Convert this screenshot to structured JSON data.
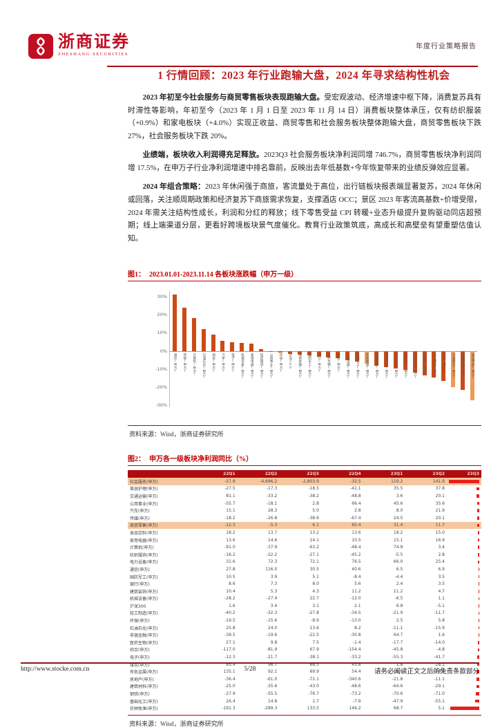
{
  "header": {
    "brand_cn": "浙商证券",
    "brand_en": "ZHESHANG SECURITIES",
    "report_type": "年度行业策略报告"
  },
  "section_title": "1 行情回顾：2023 年行业跑输大盘，2024 年寻求结构性机会",
  "paragraphs": [
    {
      "lead": "2023 年初至今社会服务与商贸零售板块表现跑输大盘。",
      "body": "受宏观波动、经济增速中枢下降，消费复苏具有时滞性等影响，年初至今（2023 年 1 月 1 日至 2023 年 11 月 14 日）消费板块整体承压，仅有纺织服装（+0.9%）和家电板块（+4.0%）实现正收益、商贸零售和社会服务板块整体跑输大盘，商贸零售板块下跌 27%，社会服务板块下跌 20%。"
    },
    {
      "lead": "业绩端，板块收入利润得充足释放。",
      "body": "2023Q3 社会服务板块净利润同增 746.7%，商贸零售板块净利润同增 17.5%，在申万子行业净利润增速中排名靠前，反映出去年低基数+今年恢复带来的业绩反弹效应显著。"
    },
    {
      "lead": "2024 年组合策略：",
      "body": "2023 年休闲强于商旅，客流量处于高位，出行链板块报表端显著复苏，2024 年休闲或回落，关注顺周期政策和经济复苏下商旅需求恢复，支撑酒店 OCC；景区 2023 年客流高基数+价增受限，2024 年需关注结构性成长，利润和分红的释放；线下零售受益 CPI 转暖+业态升级提升复购驱动同店超预期；线上端渠道分层，更看好跨境板块景气度催化。教育行业政策筑底，高成长和高壁垒有望重塑估值认知。"
    }
  ],
  "figure1": {
    "label": "图1：",
    "title": "2023.01.01-2023.11.14 各板块涨跌幅（申万一级）",
    "source": "资料来源：Wind，浙商证券研究所"
  },
  "figure2": {
    "label": "图2：",
    "title": "申万各一级板块净利润同比（%）",
    "source": "资料来源：Wind，浙商证券研究所"
  },
  "chart_data": [
    {
      "type": "bar",
      "title": "2023.01.01-2023.11.14 各板块涨跌幅（申万一级）",
      "ylabel": "涨跌幅",
      "ylim": [
        -30,
        30
      ],
      "yticks": [
        "30%",
        "20%",
        "10%",
        "0%",
        "-10%",
        "-20%",
        "-30%"
      ],
      "grid": false,
      "categories": [
        "通信(申万)",
        "传媒(申万)",
        "计算机(申万)",
        "石油石化(申万)",
        "煤炭(申万)",
        "汽车(申万)",
        "电子(申万)",
        "机械设备(申万)",
        "家用电器(申万)",
        "纺织服饰(申万)",
        "公用事业(申万)",
        "环保(申万)",
        "沪深300",
        "非银金融(申万)",
        "国防军工(申万)",
        "银行(申万)",
        "医药生物(申万)",
        "钢铁(申万)",
        "交通运输(申万)",
        "基础化工(申万)",
        "有色金属(申万)",
        "建筑装饰(申万)",
        "食品饮料(申万)",
        "农林牧渔(申万)",
        "建筑材料(申万)",
        "电力设备(申万)",
        "房地产(申万)",
        "轻工制造(申万)",
        "综合(申万)",
        "社会服务(申万)",
        "美容护理(申万)",
        "商贸零售(申万)"
      ],
      "values": [
        31,
        24,
        18,
        12,
        9,
        5.5,
        5,
        4.5,
        4.0,
        0.9,
        -0.5,
        -1,
        -1.5,
        -2,
        -2.5,
        -3,
        -3.5,
        -4,
        -5,
        -6,
        -7,
        -8,
        -9,
        -9.5,
        -10.5,
        -12,
        -13.5,
        -14.5,
        -16.5,
        -20,
        -21.5,
        -27
      ],
      "highlight_indexes": [
        20,
        29,
        31
      ],
      "bar_color": "#cc4a14",
      "highlight_color": "#f09a58"
    },
    {
      "type": "table",
      "title": "申万各一级板块净利润同比（%）",
      "columns": [
        "",
        "22Q1",
        "22Q2",
        "22Q3",
        "22Q4",
        "23Q1",
        "23Q2",
        "23Q3"
      ],
      "q3_note": "23Q3 列以红色数据条展示",
      "rows": [
        {
          "name": "社会服务(申万)",
          "v": [
            "-57.9",
            "-4,696.2",
            "-2,803.9",
            "-32.5",
            "119.2",
            "141.9"
          ],
          "bar": 100,
          "hl": true
        },
        {
          "name": "美容护理(申万)",
          "v": [
            "-27.5",
            "-17.3",
            "-18.5",
            "-41.1",
            "35.5",
            "37.8"
          ],
          "bar": 8,
          "hl": false
        },
        {
          "name": "交通运输(申万)",
          "v": [
            "81.1",
            "-33.2",
            "-38.2",
            "-48.8",
            "3.6",
            "20.1"
          ],
          "bar": 8,
          "hl": false
        },
        {
          "name": "公用事业(申万)",
          "v": [
            "-55.7",
            "-18.1",
            "2.8",
            "66.4",
            "45.6",
            "35.6"
          ],
          "bar": 7,
          "hl": false
        },
        {
          "name": "汽车(申万)",
          "v": [
            "15.1",
            "28.3",
            "5.0",
            "2.8",
            "8.0",
            "21.9"
          ],
          "bar": 7,
          "hl": false
        },
        {
          "name": "传媒(申万)",
          "v": [
            "-18.2",
            "-26.8",
            "-38.6",
            "-67.4",
            "24.5",
            "20.1"
          ],
          "bar": 6,
          "hl": false
        },
        {
          "name": "商贸零售(申万)",
          "v": [
            "-12.3",
            "-5.3",
            "6.1",
            "65.4",
            "31.4",
            "11.7"
          ],
          "bar": 6,
          "hl": true
        },
        {
          "name": "食品饮料(申万)",
          "v": [
            "18.2",
            "13.7",
            "13.2",
            "13.6",
            "18.2",
            "15.0"
          ],
          "bar": 5,
          "hl": false
        },
        {
          "name": "家用电器(申万)",
          "v": [
            "13.6",
            "14.6",
            "14.1",
            "10.5",
            "15.1",
            "16.9"
          ],
          "bar": 5,
          "hl": false
        },
        {
          "name": "计算机(申万)",
          "v": [
            "-91.0",
            "-37.9",
            "-63.2",
            "-48.4",
            "74.8",
            "3.4"
          ],
          "bar": 4,
          "hl": false
        },
        {
          "name": "纺织服饰(申万)",
          "v": [
            "-16.2",
            "-22.2",
            "-27.1",
            "-45.2",
            "-5.5",
            "2.8"
          ],
          "bar": 4,
          "hl": false
        },
        {
          "name": "电力设备(申万)",
          "v": [
            "31.6",
            "72.3",
            "72.1",
            "76.5",
            "66.0",
            "25.4"
          ],
          "bar": 4,
          "hl": false
        },
        {
          "name": "通信(申万)",
          "v": [
            "27.8",
            "116.0",
            "30.5",
            "40.6",
            "6.5",
            "6.9"
          ],
          "bar": 3,
          "hl": false
        },
        {
          "name": "国防军工(申万)",
          "v": [
            "10.5",
            "3.9",
            "5.1",
            "-8.4",
            "-4.4",
            "3.5"
          ],
          "bar": 3,
          "hl": false
        },
        {
          "name": "银行(申万)",
          "v": [
            "8.6",
            "7.3",
            "8.0",
            "5.6",
            "2.4",
            "3.5"
          ],
          "bar": 3,
          "hl": false
        },
        {
          "name": "建筑装饰(申万)",
          "v": [
            "10.4",
            "5.3",
            "4.3",
            "11.2",
            "11.2",
            "4.7"
          ],
          "bar": 3,
          "hl": false
        },
        {
          "name": "机械设备(申万)",
          "v": [
            "-28.2",
            "-27.4",
            "22.7",
            "-12.0",
            "-6.5",
            "1.1"
          ],
          "bar": 2,
          "hl": false
        },
        {
          "name": "沪深300",
          "v": [
            "1.6",
            "3.4",
            "3.1",
            "2.1",
            "6.8",
            "-5.1"
          ],
          "bar": 2,
          "hl": false
        },
        {
          "name": "轻工制造(申万)",
          "v": [
            "-40.2",
            "-32.3",
            "-27.8",
            "-34.5",
            "-21.9",
            "-11.7"
          ],
          "bar": 2,
          "hl": false
        },
        {
          "name": "环保(申万)",
          "v": [
            "-19.5",
            "-15.6",
            "-8.9",
            "-13.0",
            "2.5",
            "5.8"
          ],
          "bar": 2,
          "hl": false
        },
        {
          "name": "石油石化(申万)",
          "v": [
            "25.8",
            "24.0",
            "13.6",
            "8.2",
            "-11.1",
            "-15.9"
          ],
          "bar": 3,
          "hl": false
        },
        {
          "name": "非银金融(申万)",
          "v": [
            "-39.5",
            "-19.6",
            "-22.5",
            "-30.8",
            "64.7",
            "1.6"
          ],
          "bar": 3,
          "hl": false
        },
        {
          "name": "医药生物(申万)",
          "v": [
            "27.1",
            "9.8",
            "7.5",
            "-1.4",
            "-17.7",
            "-14.0"
          ],
          "bar": 4,
          "hl": false
        },
        {
          "name": "综合(申万)",
          "v": [
            "-117.0",
            "-81.9",
            "67.9",
            "-154.4",
            "-45.8",
            "-4.8"
          ],
          "bar": 5,
          "hl": false
        },
        {
          "name": "电子(申万)",
          "v": [
            "-12.3",
            "-21.7",
            "-38.1",
            "-33.2",
            "-55.3",
            "-41.7"
          ],
          "bar": 6,
          "hl": false
        },
        {
          "name": "煤炭(申万)",
          "v": [
            "85.4",
            "96.7",
            "68.5",
            "45.8",
            "1.8",
            "-28.1"
          ],
          "bar": 7,
          "hl": false
        },
        {
          "name": "有色金属(申万)",
          "v": [
            "135.1",
            "92.1",
            "69.9",
            "54.4",
            "-19.0",
            "-26.6"
          ],
          "bar": 8,
          "hl": false
        },
        {
          "name": "房地产(申万)",
          "v": [
            "-36.4",
            "-61.0",
            "-72.1",
            "-340.6",
            "-21.8",
            "-11.1"
          ],
          "bar": 9,
          "hl": false
        },
        {
          "name": "建筑材料(申万)",
          "v": [
            "-25.0",
            "-35.6",
            "-43.0",
            "-48.6",
            "-64.6",
            "-29.1"
          ],
          "bar": 10,
          "hl": false
        },
        {
          "name": "钢铁(申万)",
          "v": [
            "-27.9",
            "-55.5",
            "-76.7",
            "-73.2",
            "-70.6",
            "-71.0"
          ],
          "bar": 12,
          "hl": false
        },
        {
          "name": "基础化工(申万)",
          "v": [
            "26.4",
            "14.8",
            "1.7",
            "-7.9",
            "-47.9",
            "-55.1"
          ],
          "bar": 14,
          "hl": false
        },
        {
          "name": "农林牧渔(申万)",
          "v": [
            "-191.3",
            "-289.3",
            "133.5",
            "146.2",
            "68.7",
            "5.1"
          ],
          "bar": 95,
          "hl": false
        }
      ]
    }
  ],
  "footer": {
    "url": "http://www.stocke.com.cn",
    "page": "5/28",
    "disclaimer": "请务必阅读正文之后的免责条款部分"
  },
  "colors": {
    "accent_red": "#c00000",
    "brand_red": "#c30d23",
    "table_header_bg": "#b00b0e",
    "row_highlight": "#f6c79e",
    "bar_orange": "#cc4a14",
    "bar_light": "#f09a58",
    "databar_red": "#e8211d"
  }
}
